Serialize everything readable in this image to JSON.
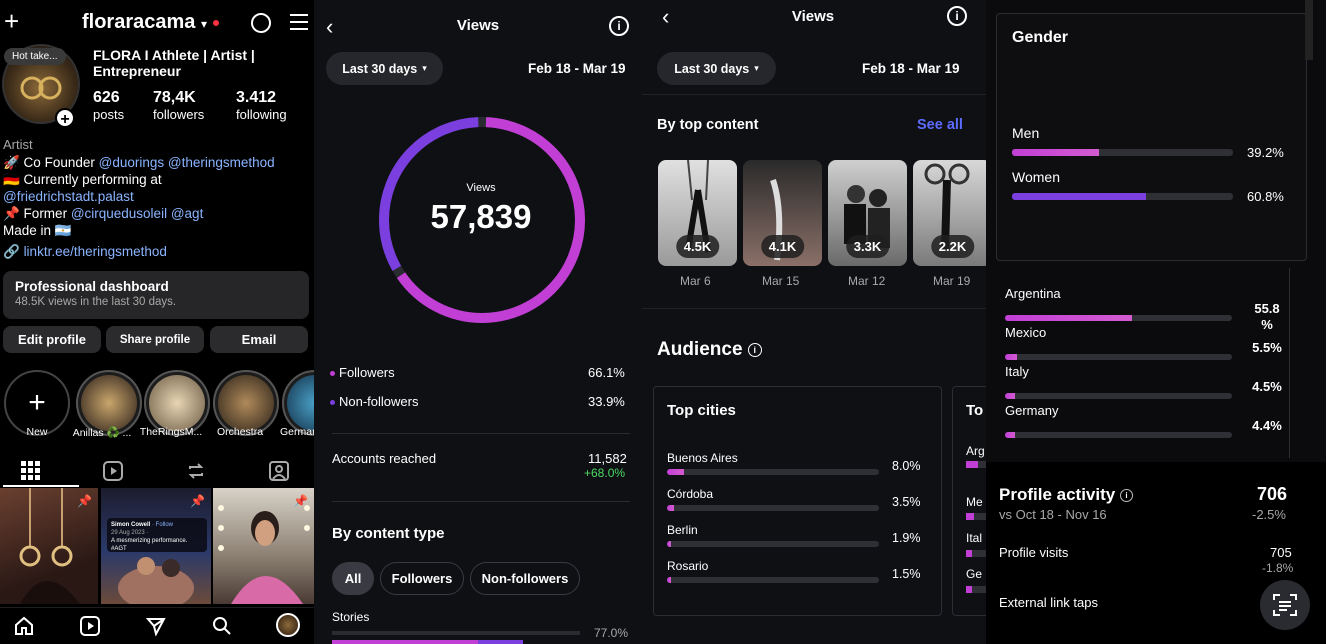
{
  "profile": {
    "username": "floraracama",
    "name": "FLORA I Athlete | Artist | Entrepreneur",
    "avatar_note": "Hot take...",
    "posts": "626",
    "posts_label": "posts",
    "followers": "78,4K",
    "followers_label": "followers",
    "following": "3.412",
    "following_label": "following",
    "category": "Artist",
    "bio": {
      "l1a": "🚀 Co Founder ",
      "l1b": "@duorings",
      "l1c": " ",
      "l1d": "@theringsmethod",
      "l2": "🇩🇪 Currently performing at",
      "l3": "@friedrichstadt.palast",
      "l4a": "📌 Former ",
      "l4b": "@cirquedusoleil",
      "l4c": " ",
      "l4d": "@agt",
      "l5": "Made in 🇦🇷",
      "link": "linktr.ee/theringsmethod"
    },
    "dashboard_title": "Professional dashboard",
    "dashboard_sub": "48.5K views in the last 30 days.",
    "buttons": {
      "edit": "Edit profile",
      "share": "Share profile",
      "email": "Email"
    },
    "highlights": [
      "New",
      "Anillas ♻️ ...",
      "TheRingsM...",
      "Orchestra",
      "Germany"
    ],
    "post_caption": {
      "name": "Simon Cowell",
      "follow": "· Follow",
      "date": "29 Aug 2023 ·",
      "text": "A mesmerizing performance. #AGT"
    }
  },
  "views": {
    "title": "Views",
    "range": "Last 30 days",
    "dates": "Feb 18 - Mar 19",
    "center_label": "Views",
    "total": "57,839",
    "followers_pct": 66.1,
    "followers_label": "Followers",
    "followers_val": "66.1%",
    "nonfollowers_label": "Non-followers",
    "nonfollowers_val": "33.9%",
    "reached_label": "Accounts reached",
    "reached_val": "11,582",
    "reached_delta": "+68.0%",
    "content_type": "By content type",
    "filters": [
      "All",
      "Followers",
      "Non-followers"
    ],
    "stories_label": "Stories",
    "stories_val": "77.0%"
  },
  "views2": {
    "title": "Views",
    "range": "Last 30 days",
    "dates": "Feb 18 - Mar 19",
    "top_content": "By top content",
    "see_all": "See all",
    "items": [
      {
        "val": "4.5K",
        "date": "Mar 6"
      },
      {
        "val": "4.1K",
        "date": "Mar 15"
      },
      {
        "val": "3.3K",
        "date": "Mar 12"
      },
      {
        "val": "2.2K",
        "date": "Mar 19"
      }
    ],
    "audience": "Audience",
    "top_cities": "Top cities",
    "top_countries": "To",
    "cities": [
      {
        "name": "Buenos Aires",
        "val": "8.0%",
        "pct": 8.0
      },
      {
        "name": "Córdoba",
        "val": "3.5%",
        "pct": 3.5
      },
      {
        "name": "Berlin",
        "val": "1.9%",
        "pct": 1.9
      },
      {
        "name": "Rosario",
        "val": "1.5%",
        "pct": 1.5
      }
    ],
    "countries_partial": [
      "Arg",
      "Me",
      "Ital",
      "Ge"
    ]
  },
  "audience": {
    "gender_title": "Gender",
    "men_label": "Men",
    "men_val": "39.2%",
    "men_pct": 39.2,
    "women_label": "Women",
    "women_val": "60.8%",
    "women_pct": 60.8,
    "countries": [
      {
        "name": "Argentina",
        "val": "55.8 %",
        "pct": 55.8
      },
      {
        "name": "Mexico",
        "val": "5.5%",
        "pct": 5.5
      },
      {
        "name": "Italy",
        "val": "4.5%",
        "pct": 4.5
      },
      {
        "name": "Germany",
        "val": "4.4%",
        "pct": 4.4
      }
    ],
    "activity_title": "Profile activity",
    "activity_val": "706",
    "activity_compare": "vs Oct 18 - Nov 16",
    "activity_delta": "-2.5%",
    "visits_label": "Profile visits",
    "visits_val": "705",
    "visits_delta": "-1.8%",
    "taps_label": "External link taps"
  },
  "colors": {
    "accent": "#c23fd6",
    "violet": "#7b3fe0",
    "link": "#8ab4ff",
    "blue": "#5b6cff",
    "green": "#4cd964"
  }
}
